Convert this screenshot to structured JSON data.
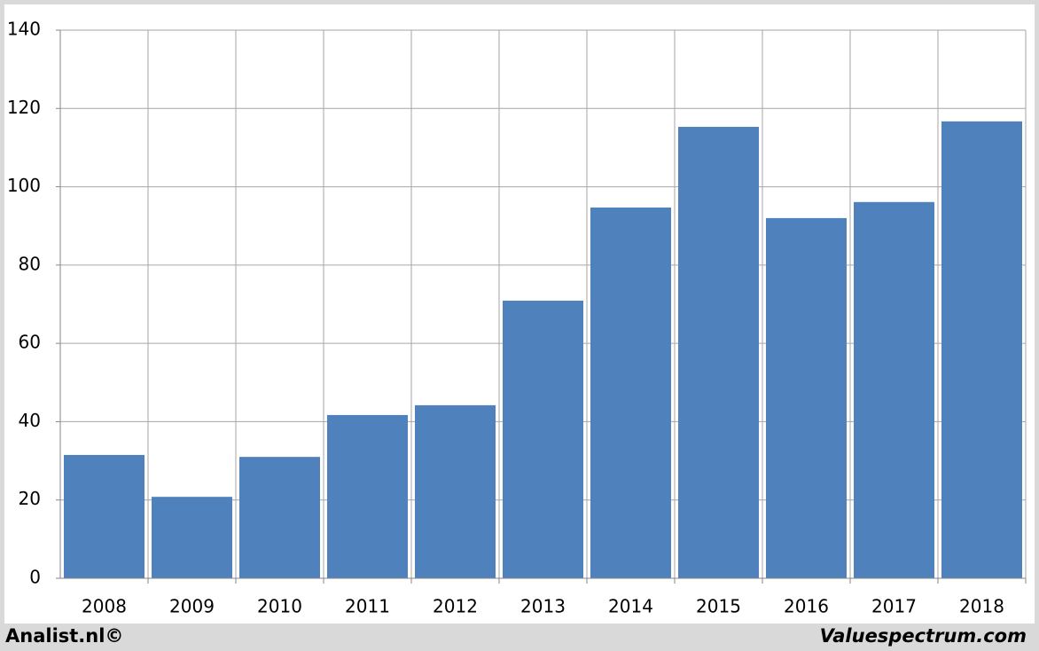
{
  "chart_data": {
    "type": "bar",
    "categories": [
      "2008",
      "2009",
      "2010",
      "2011",
      "2012",
      "2013",
      "2014",
      "2015",
      "2016",
      "2017",
      "2018"
    ],
    "values": [
      31.5,
      20.8,
      31.0,
      41.7,
      44.2,
      70.9,
      94.7,
      115.3,
      92.0,
      96.1,
      116.7
    ],
    "color": "#4f81bd",
    "ylim": [
      0,
      140
    ],
    "yticks": [
      0,
      20,
      40,
      60,
      80,
      100,
      120,
      140
    ],
    "grid": true,
    "annotations": [
      "Analist.nl©",
      "Valuespectrum.com"
    ]
  }
}
